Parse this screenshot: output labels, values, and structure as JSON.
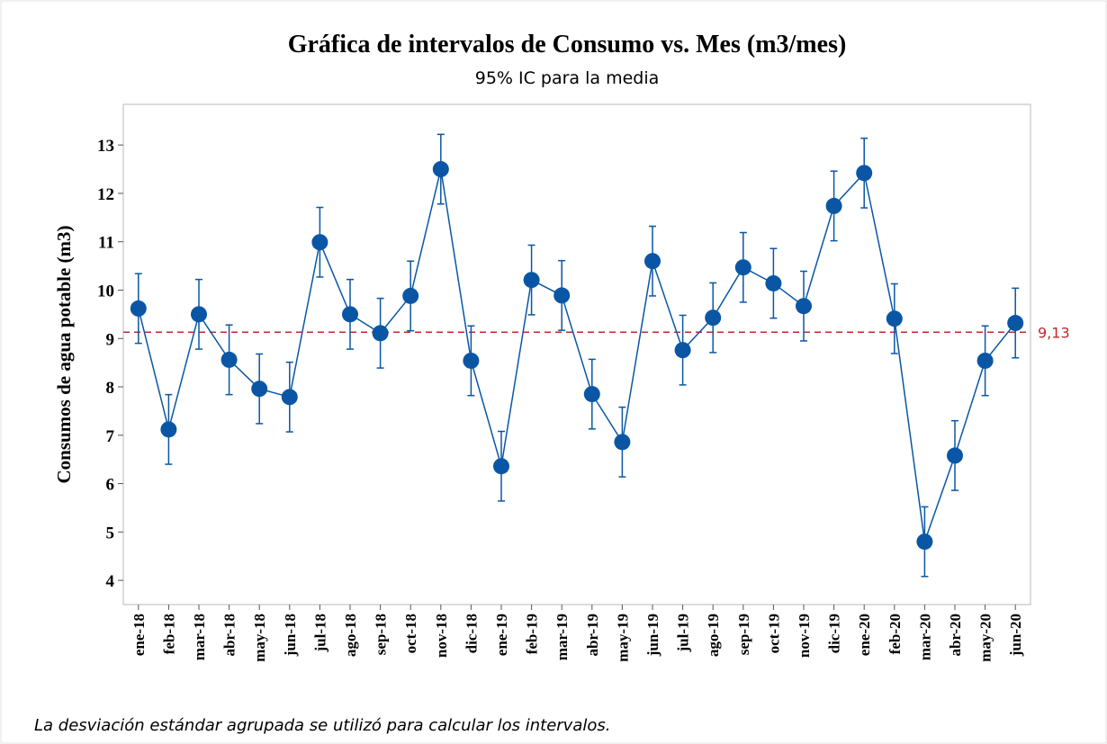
{
  "chart_data": {
    "type": "interval",
    "title": "Gráfica de intervalos de Consumo vs. Mes (m3/mes)",
    "subtitle": "95% IC para la media",
    "y_label": "Consumos de agua potable (m3)",
    "footnote": "La desviación estándar agrupada se utilizó para calcular los intervalos.",
    "categories": [
      "ene-18",
      "feb-18",
      "mar-18",
      "abr-18",
      "may-18",
      "jun-18",
      "jul-18",
      "ago-18",
      "sep-18",
      "oct-18",
      "nov-18",
      "dic-18",
      "ene-19",
      "feb-19",
      "mar-19",
      "abr-19",
      "may-19",
      "jun-19",
      "jul-19",
      "ago-19",
      "sep-19",
      "oct-19",
      "nov-19",
      "dic-19",
      "ene-20",
      "feb-20",
      "mar-20",
      "abr-20",
      "may-20",
      "jun-20"
    ],
    "values": [
      9.62,
      7.12,
      9.5,
      8.56,
      7.96,
      7.79,
      10.99,
      9.5,
      9.11,
      9.88,
      12.5,
      8.54,
      6.36,
      10.21,
      9.89,
      7.85,
      6.86,
      10.6,
      8.76,
      9.43,
      10.47,
      10.14,
      9.67,
      11.74,
      12.42,
      9.41,
      4.8,
      6.58,
      8.54,
      9.32
    ],
    "errors": [
      0.72,
      0.72,
      0.72,
      0.72,
      0.72,
      0.72,
      0.72,
      0.72,
      0.72,
      0.72,
      0.72,
      0.72,
      0.72,
      0.72,
      0.72,
      0.72,
      0.72,
      0.72,
      0.72,
      0.72,
      0.72,
      0.72,
      0.72,
      0.72,
      0.72,
      0.72,
      0.72,
      0.72,
      0.72,
      0.72
    ],
    "color": "#0a56a5",
    "reference_line": {
      "value": 9.13,
      "label": "9,13",
      "color": "#c0282d"
    },
    "ylim": [
      3.5,
      13.84
    ],
    "yticks": [
      4,
      5,
      6,
      7,
      8,
      9,
      10,
      11,
      12,
      13
    ]
  }
}
